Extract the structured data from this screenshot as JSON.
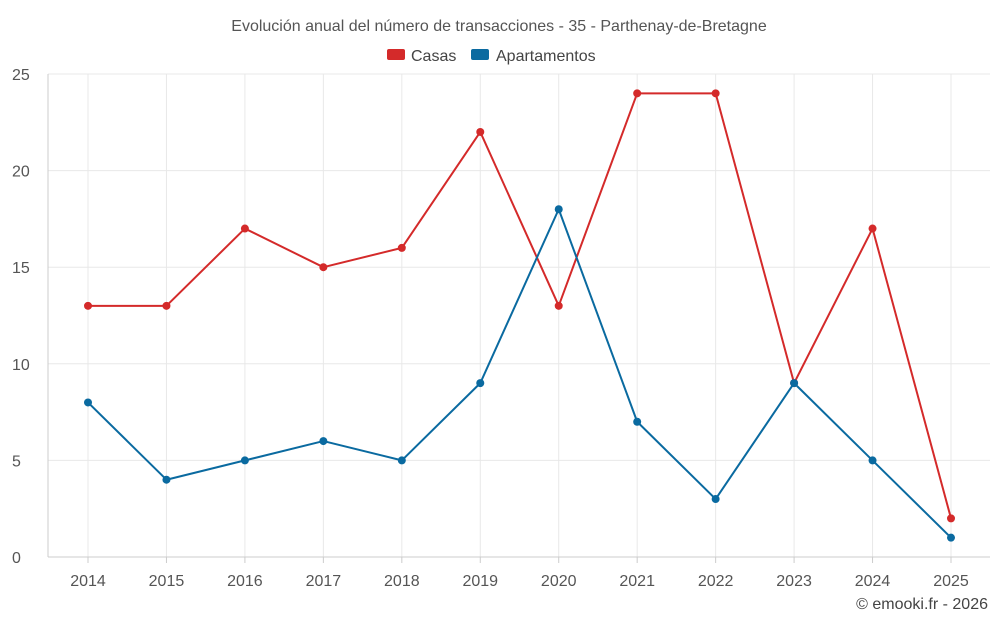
{
  "chart_data": {
    "type": "line",
    "title": "Evolución anual del número de transacciones - 35 - Parthenay-de-Bretagne",
    "xlabel": "",
    "ylabel": "",
    "categories": [
      "2014",
      "2015",
      "2016",
      "2017",
      "2018",
      "2019",
      "2020",
      "2021",
      "2022",
      "2023",
      "2024",
      "2025"
    ],
    "ylim": [
      0,
      25
    ],
    "yticks": [
      0,
      5,
      10,
      15,
      20,
      25
    ],
    "grid": true,
    "legend_position": "top-center",
    "series": [
      {
        "name": "Casas",
        "color": "#d42a2a",
        "values": [
          13,
          13,
          17,
          15,
          16,
          22,
          13,
          24,
          24,
          9,
          17,
          2
        ]
      },
      {
        "name": "Apartamentos",
        "color": "#0a6aa0",
        "values": [
          8,
          4,
          5,
          6,
          5,
          9,
          18,
          7,
          3,
          9,
          5,
          1
        ]
      }
    ]
  },
  "credit": "© emooki.fr - 2026"
}
